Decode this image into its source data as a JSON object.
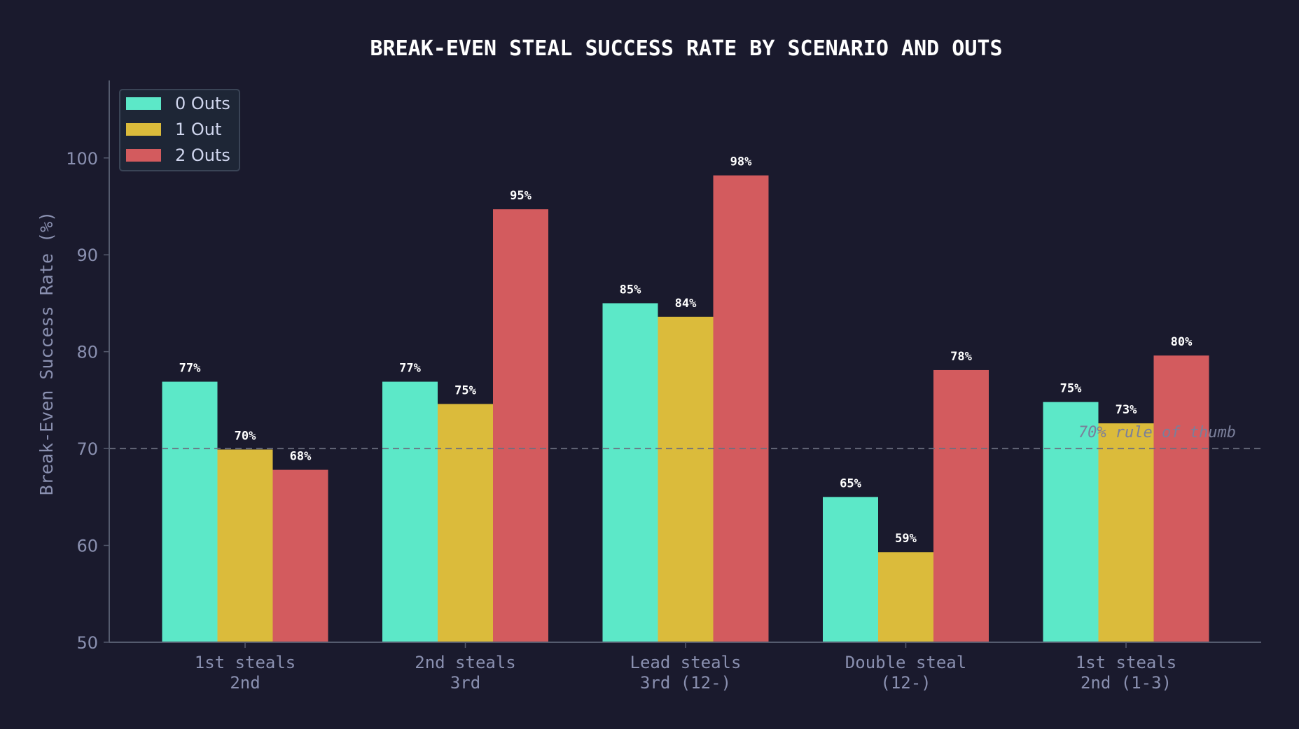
{
  "chart_data": {
    "type": "bar",
    "title": "BREAK-EVEN STEAL SUCCESS RATE BY SCENARIO AND OUTS",
    "xlabel": "",
    "ylabel": "Break-Even Success Rate (%)",
    "ylim": [
      50,
      108
    ],
    "yticks": [
      50,
      60,
      70,
      80,
      90,
      100
    ],
    "grid": false,
    "legend_position": "top-left",
    "categories": [
      [
        "1st steals",
        "2nd"
      ],
      [
        "2nd steals",
        "3rd"
      ],
      [
        "Lead steals",
        "3rd (12-)"
      ],
      [
        "Double steal",
        "(12-)"
      ],
      [
        "1st steals",
        "2nd (1-3)"
      ]
    ],
    "series": [
      {
        "name": "0 Outs",
        "color": "#5ce8c8",
        "values": [
          76.9,
          76.9,
          85.0,
          65.0,
          74.8
        ],
        "labels": [
          "77%",
          "77%",
          "85%",
          "65%",
          "75%"
        ]
      },
      {
        "name": "1 Out",
        "color": "#dbbb3b",
        "values": [
          69.9,
          74.6,
          83.6,
          59.3,
          72.6
        ],
        "labels": [
          "70%",
          "75%",
          "84%",
          "59%",
          "73%"
        ]
      },
      {
        "name": "2 Outs",
        "color": "#d35b5e",
        "values": [
          67.8,
          94.7,
          98.2,
          78.1,
          79.6
        ],
        "labels": [
          "68%",
          "95%",
          "98%",
          "78%",
          "80%"
        ]
      }
    ],
    "reference_line": {
      "value": 70,
      "label": "70% rule of thumb",
      "style": "dashed",
      "color": "#6b6f80"
    }
  },
  "colors": {
    "background": "#1a1a2d",
    "text": "#8a90b0",
    "title": "#ffffff",
    "axis": "#555b6e"
  }
}
